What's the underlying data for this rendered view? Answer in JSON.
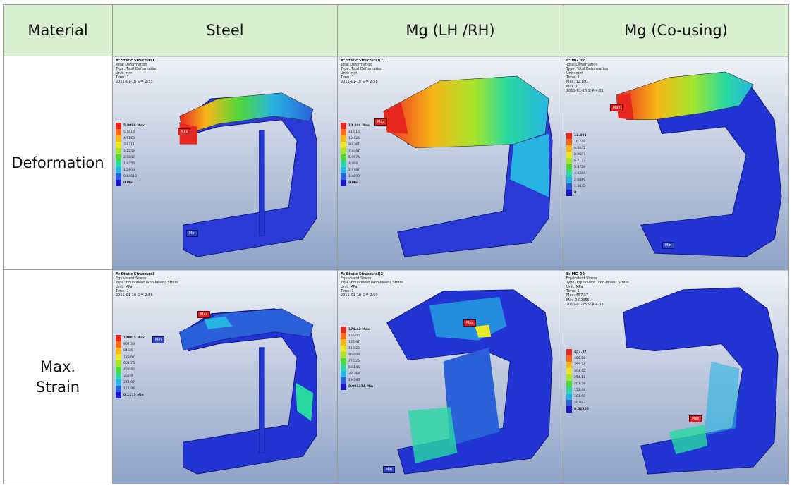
{
  "headers": [
    "Material",
    "Steel",
    "Mg (LH /RH)",
    "Mg (Co-using)"
  ],
  "rows": [
    {
      "label_lines": [
        "Deformation"
      ]
    },
    {
      "label_lines": [
        "Max.",
        "Strain"
      ]
    }
  ],
  "panels": {
    "def_steel": {
      "info": [
        "A: Static Structural",
        "Total Deformation",
        "Type: Total Deformation",
        "Unit: mm",
        "Time: 1",
        "2011-01-18 오후 2:55"
      ],
      "legend": [
        "5.8066 Max",
        "5.1614",
        "4.5162",
        "3.8711",
        "3.2259",
        "2.5807",
        "1.9355",
        "1.2904",
        "0.64518",
        "0 Min"
      ],
      "max_tag": "Max",
      "min_tag": "Min"
    },
    "def_mg_lhrh": {
      "info": [
        "A: Static Structural(2)",
        "Total Deformation",
        "Type: Total Deformation",
        "Unit: mm",
        "Time: 1",
        "2011-01-18 오후 2:58"
      ],
      "legend": [
        "13.404 Max",
        "11.915",
        "10.425",
        "8.9361",
        "7.4467",
        "5.9574",
        "4.468",
        "2.9787",
        "1.4893",
        "0 Min"
      ],
      "max_tag": "Max"
    },
    "def_mg_co": {
      "info": [
        "B: MG_02",
        "Total Deformation",
        "Type: Total Deformation",
        "Unit: mm",
        "Time: 1",
        "Max: 12.891",
        "Min: 0",
        "2011-01-26 오후 4:01"
      ],
      "legend": [
        "12.891",
        "10.748",
        "9.6042",
        "8.9607",
        "6.7173",
        "5.3728",
        "4.0284",
        "2.6869",
        "1.3435",
        "0"
      ],
      "max_tag": "Max",
      "min_tag": "Min"
    },
    "str_steel": {
      "info": [
        "A: Static Structural",
        "Equivalent Stress",
        "Type: Equivalent (von-Mises) Stress",
        "Unit: MPa",
        "Time: 1",
        "2011-01-18 오후 2:56"
      ],
      "legend": [
        "1088.5 Max",
        "967.53",
        "846.6",
        "725.67",
        "604.75",
        "483.82",
        "362.9",
        "241.97",
        "121.04",
        "0.1175 Min"
      ],
      "max_tag": "Max",
      "min_tag": "Min"
    },
    "str_mg_lhrh": {
      "info": [
        "A: Static Structural(2)",
        "Equivalent Stress",
        "Type: Equivalent (von-Mises) Stress",
        "Unit: MPa",
        "Time: 1",
        "2011-01-18 오후 2:59"
      ],
      "legend": [
        "174.43 Max",
        "155.05",
        "135.67",
        "116.29",
        "96.908",
        "77.526",
        "58.145",
        "38.764",
        "19.383",
        "0.001374 Min"
      ],
      "max_tag": "Max",
      "min_tag": "Min"
    },
    "str_mg_co": {
      "info": [
        "B: MG_02",
        "Equivalent Stress",
        "Type: Equivalent (von-Mises) Stress",
        "Unit: MPa",
        "Time: 1",
        "Max: 457.37",
        "Min: 0.02355",
        "2011-01-26 오후 4:03"
      ],
      "legend": [
        "457.37",
        "406.56",
        "355.74",
        "304.92",
        "254.11",
        "203.29",
        "152.48",
        "101.66",
        "50.843",
        "0.02355"
      ],
      "max_tag": "Max"
    }
  },
  "colors": {
    "header_bg": "#d8f0d0",
    "scale": [
      "#e8281e",
      "#f56a14",
      "#f7b718",
      "#e9e824",
      "#a6e52a",
      "#4fd83a",
      "#28d9a2",
      "#27b4e2",
      "#2a61d9",
      "#1b17c6"
    ]
  }
}
